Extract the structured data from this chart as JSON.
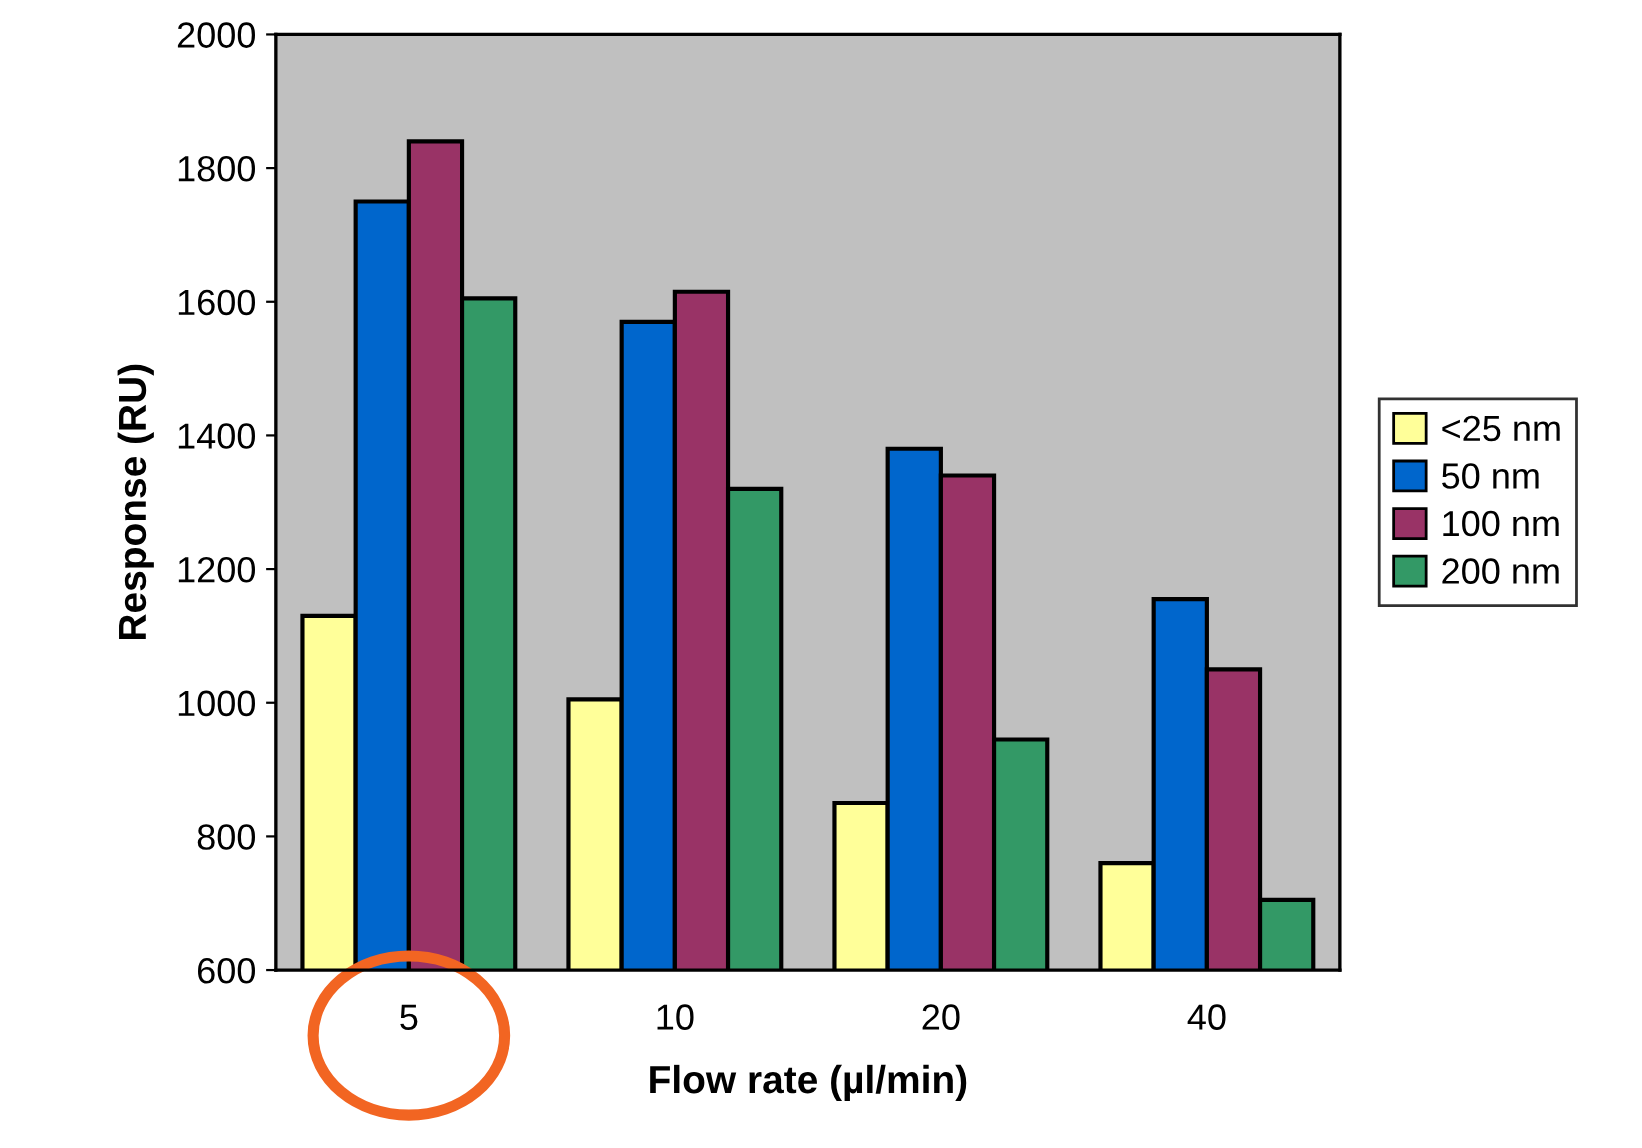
{
  "chart_data": {
    "type": "bar",
    "xlabel": "Flow rate (µl/min)",
    "ylabel": "Response (RU)",
    "categories": [
      "5",
      "10",
      "20",
      "40"
    ],
    "series": [
      {
        "name": "<25 nm",
        "color": "#ffff99",
        "values": [
          1130,
          1005,
          850,
          760
        ]
      },
      {
        "name": "50 nm",
        "color": "#0066cc",
        "values": [
          1750,
          1570,
          1380,
          1155
        ]
      },
      {
        "name": "100 nm",
        "color": "#993366",
        "values": [
          1840,
          1615,
          1340,
          1050
        ]
      },
      {
        "name": "200 nm",
        "color": "#339966",
        "values": [
          1605,
          1320,
          945,
          705
        ]
      }
    ],
    "ylim": [
      600,
      2000
    ],
    "yticks": [
      600,
      800,
      1000,
      1200,
      1400,
      1600,
      1800,
      2000
    ],
    "grid": false,
    "legend": "right"
  }
}
